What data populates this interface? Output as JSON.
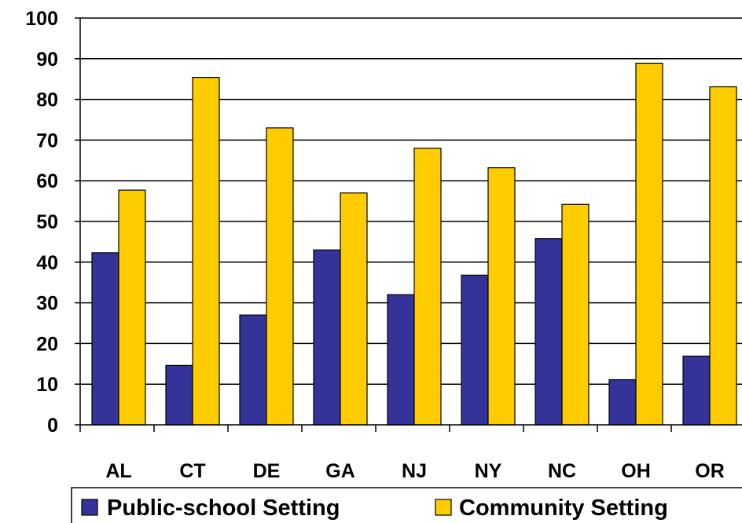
{
  "chart_data": {
    "type": "bar",
    "categories": [
      "AL",
      "CT",
      "DE",
      "GA",
      "NJ",
      "NY",
      "NC",
      "OH",
      "OR"
    ],
    "series": [
      {
        "name": "Public-school Setting",
        "color": "#333399",
        "values": [
          42.3,
          14.6,
          27,
          43,
          32,
          36.8,
          45.8,
          11.1,
          16.9
        ]
      },
      {
        "name": "Community Setting",
        "color": "#FFCC00",
        "values": [
          57.7,
          85.4,
          73,
          57,
          68,
          63.2,
          54.2,
          88.9,
          83.1
        ]
      }
    ],
    "ylim": [
      0,
      100
    ],
    "yticks": [
      0,
      10,
      20,
      30,
      40,
      50,
      60,
      70,
      80,
      90,
      100
    ],
    "grid": true,
    "legend": "bottom",
    "xlabel": "",
    "ylabel": "",
    "title": ""
  }
}
